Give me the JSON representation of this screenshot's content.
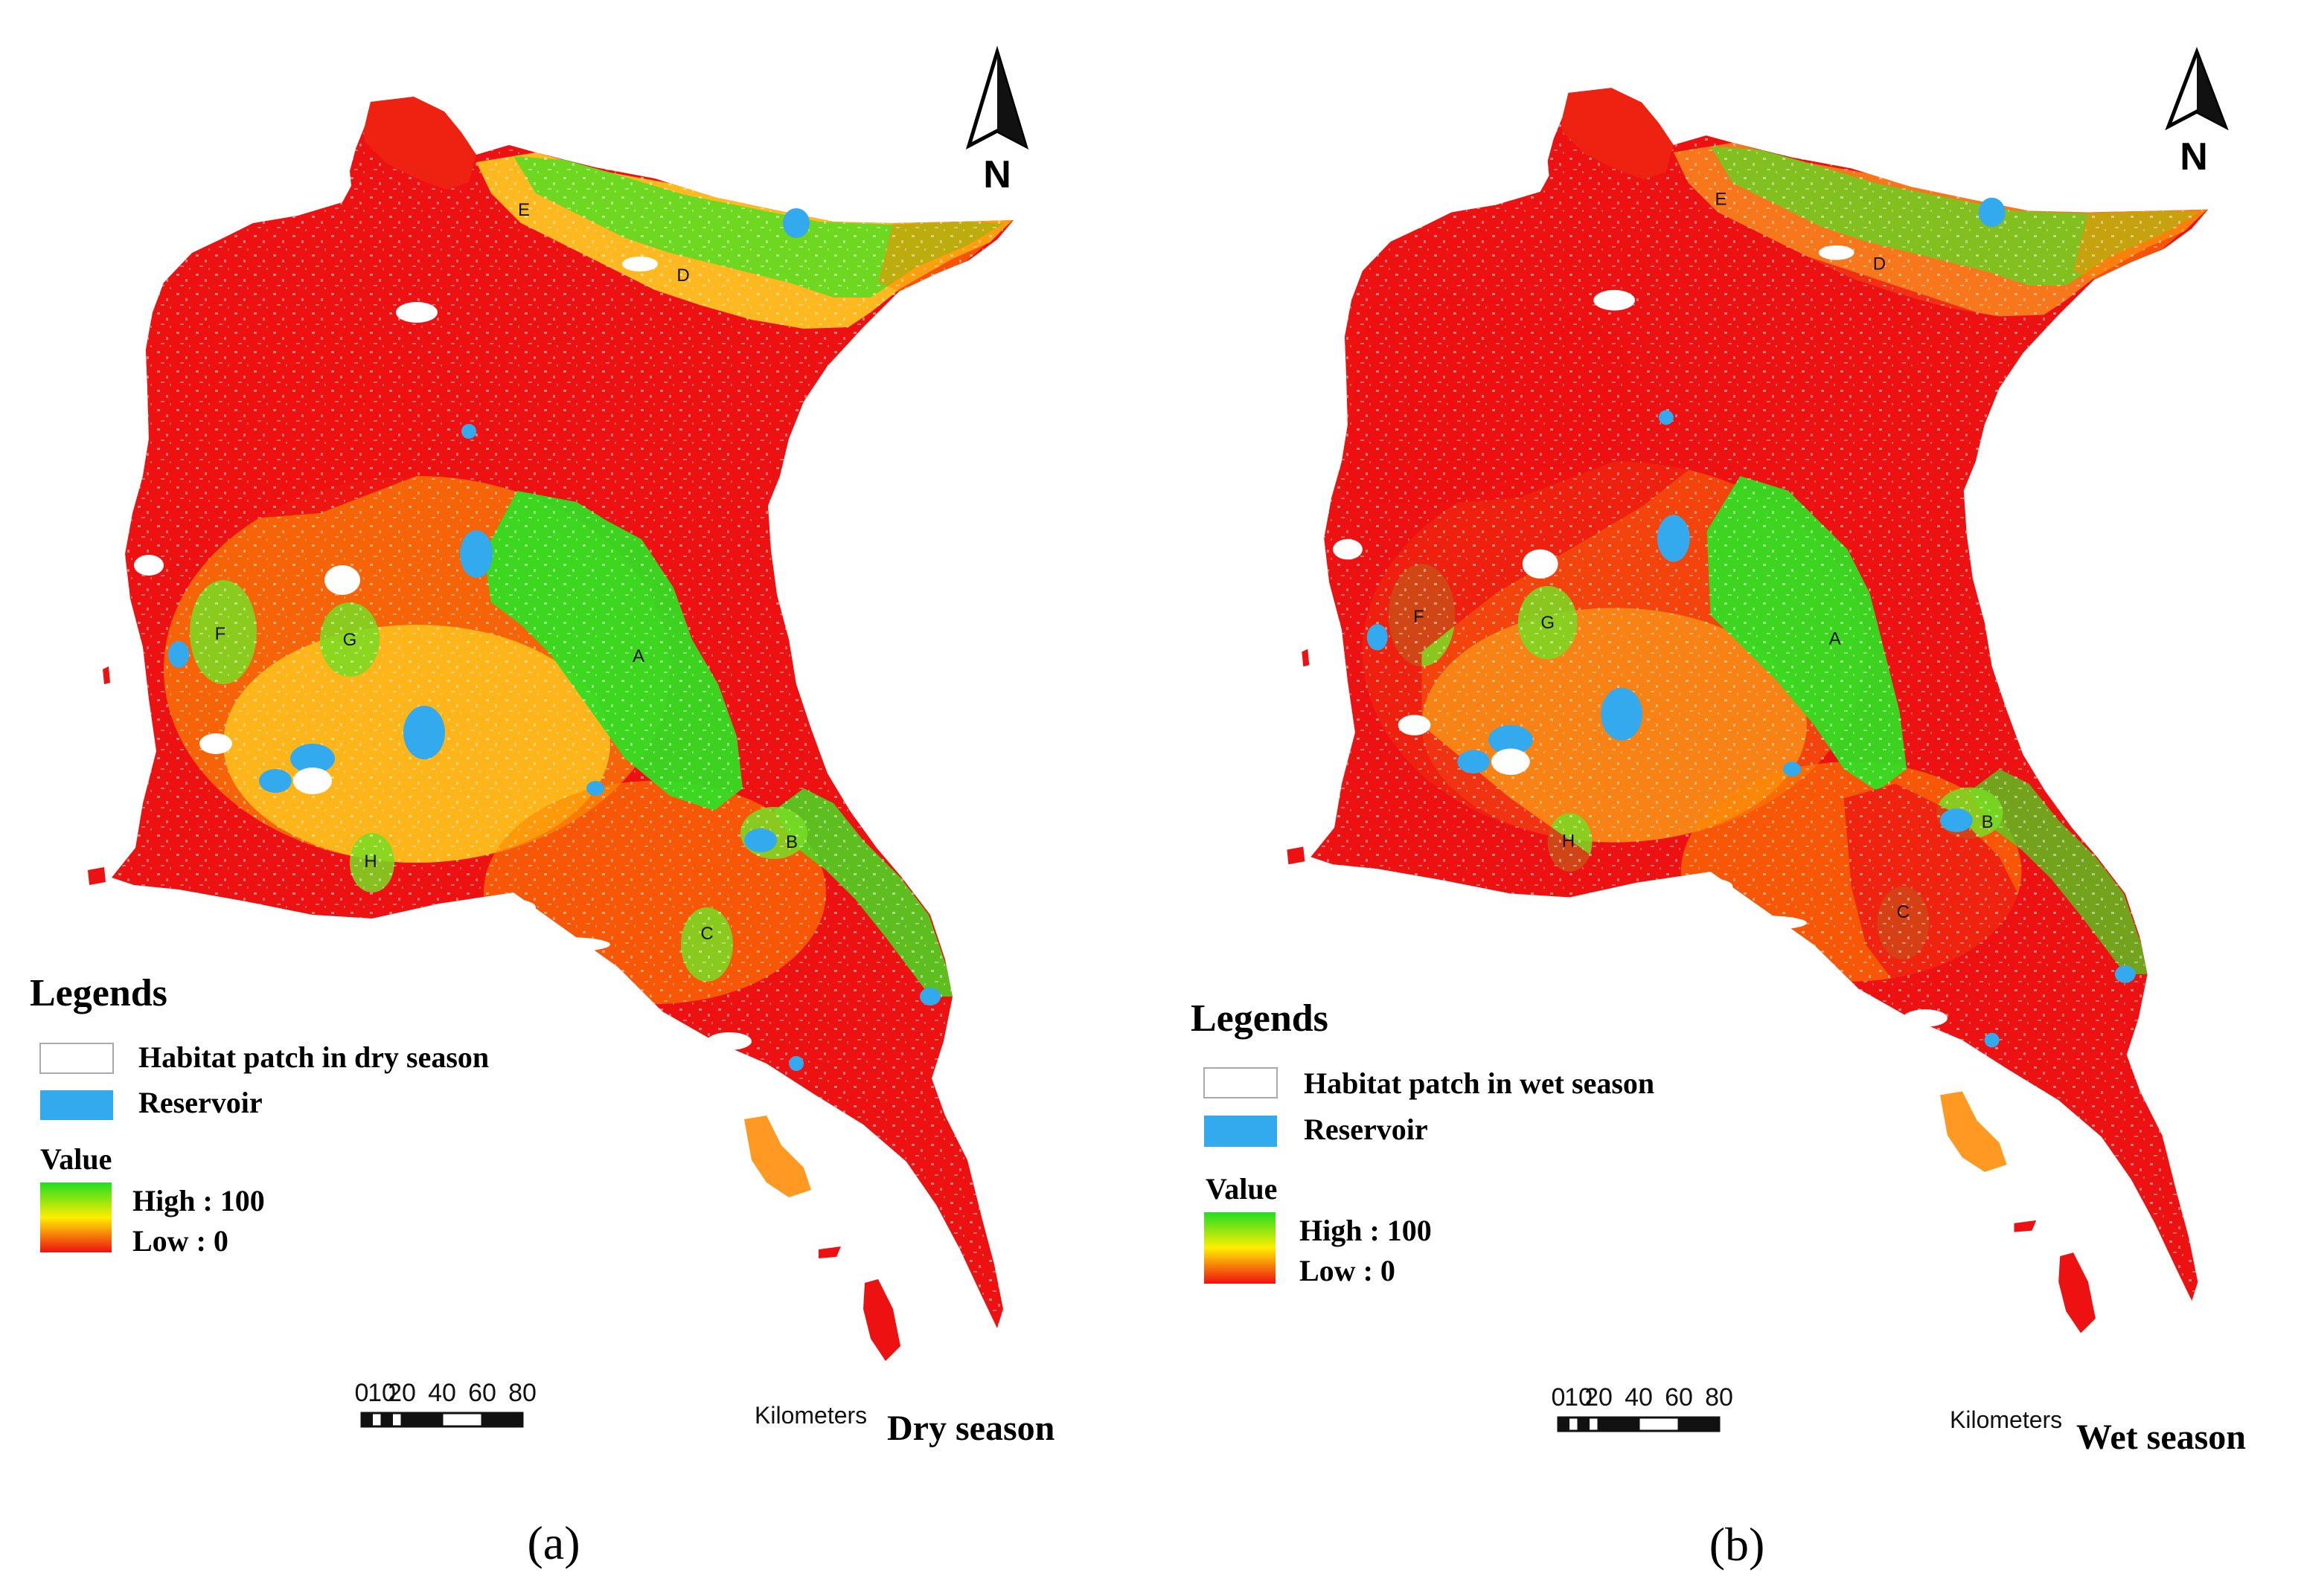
{
  "panels": [
    {
      "id": "a",
      "caption": "(a)",
      "season_title": "Dry season",
      "legend": {
        "title": "Legends",
        "habitat_label": "Habitat patch in dry season",
        "reservoir_label": "Reservoir",
        "value_title": "Value",
        "high_label": "High : 100",
        "low_label": "Low : 0"
      },
      "north_label": "N",
      "scale": {
        "ticks": [
          "0",
          "10",
          "20",
          "40",
          "60",
          "80"
        ],
        "unit": "Kilometers"
      },
      "area_labels": [
        "A",
        "B",
        "C",
        "D",
        "E",
        "F",
        "G",
        "H"
      ]
    },
    {
      "id": "b",
      "caption": "(b)",
      "season_title": "Wet season",
      "legend": {
        "title": "Legends",
        "habitat_label": "Habitat patch in wet season",
        "reservoir_label": "Reservoir",
        "value_title": "Value",
        "high_label": "High : 100",
        "low_label": "Low : 0"
      },
      "north_label": "N",
      "scale": {
        "ticks": [
          "0",
          "10",
          "20",
          "40",
          "60",
          "80"
        ],
        "unit": "Kilometers"
      },
      "area_labels": [
        "A",
        "B",
        "C",
        "D",
        "E",
        "F",
        "G",
        "H"
      ]
    }
  ],
  "colors": {
    "high": "#22dd22",
    "mid": "#ffee00",
    "low": "#ee1111",
    "reservoir": "#33aaee",
    "habitat_patch": "#ffffff"
  }
}
